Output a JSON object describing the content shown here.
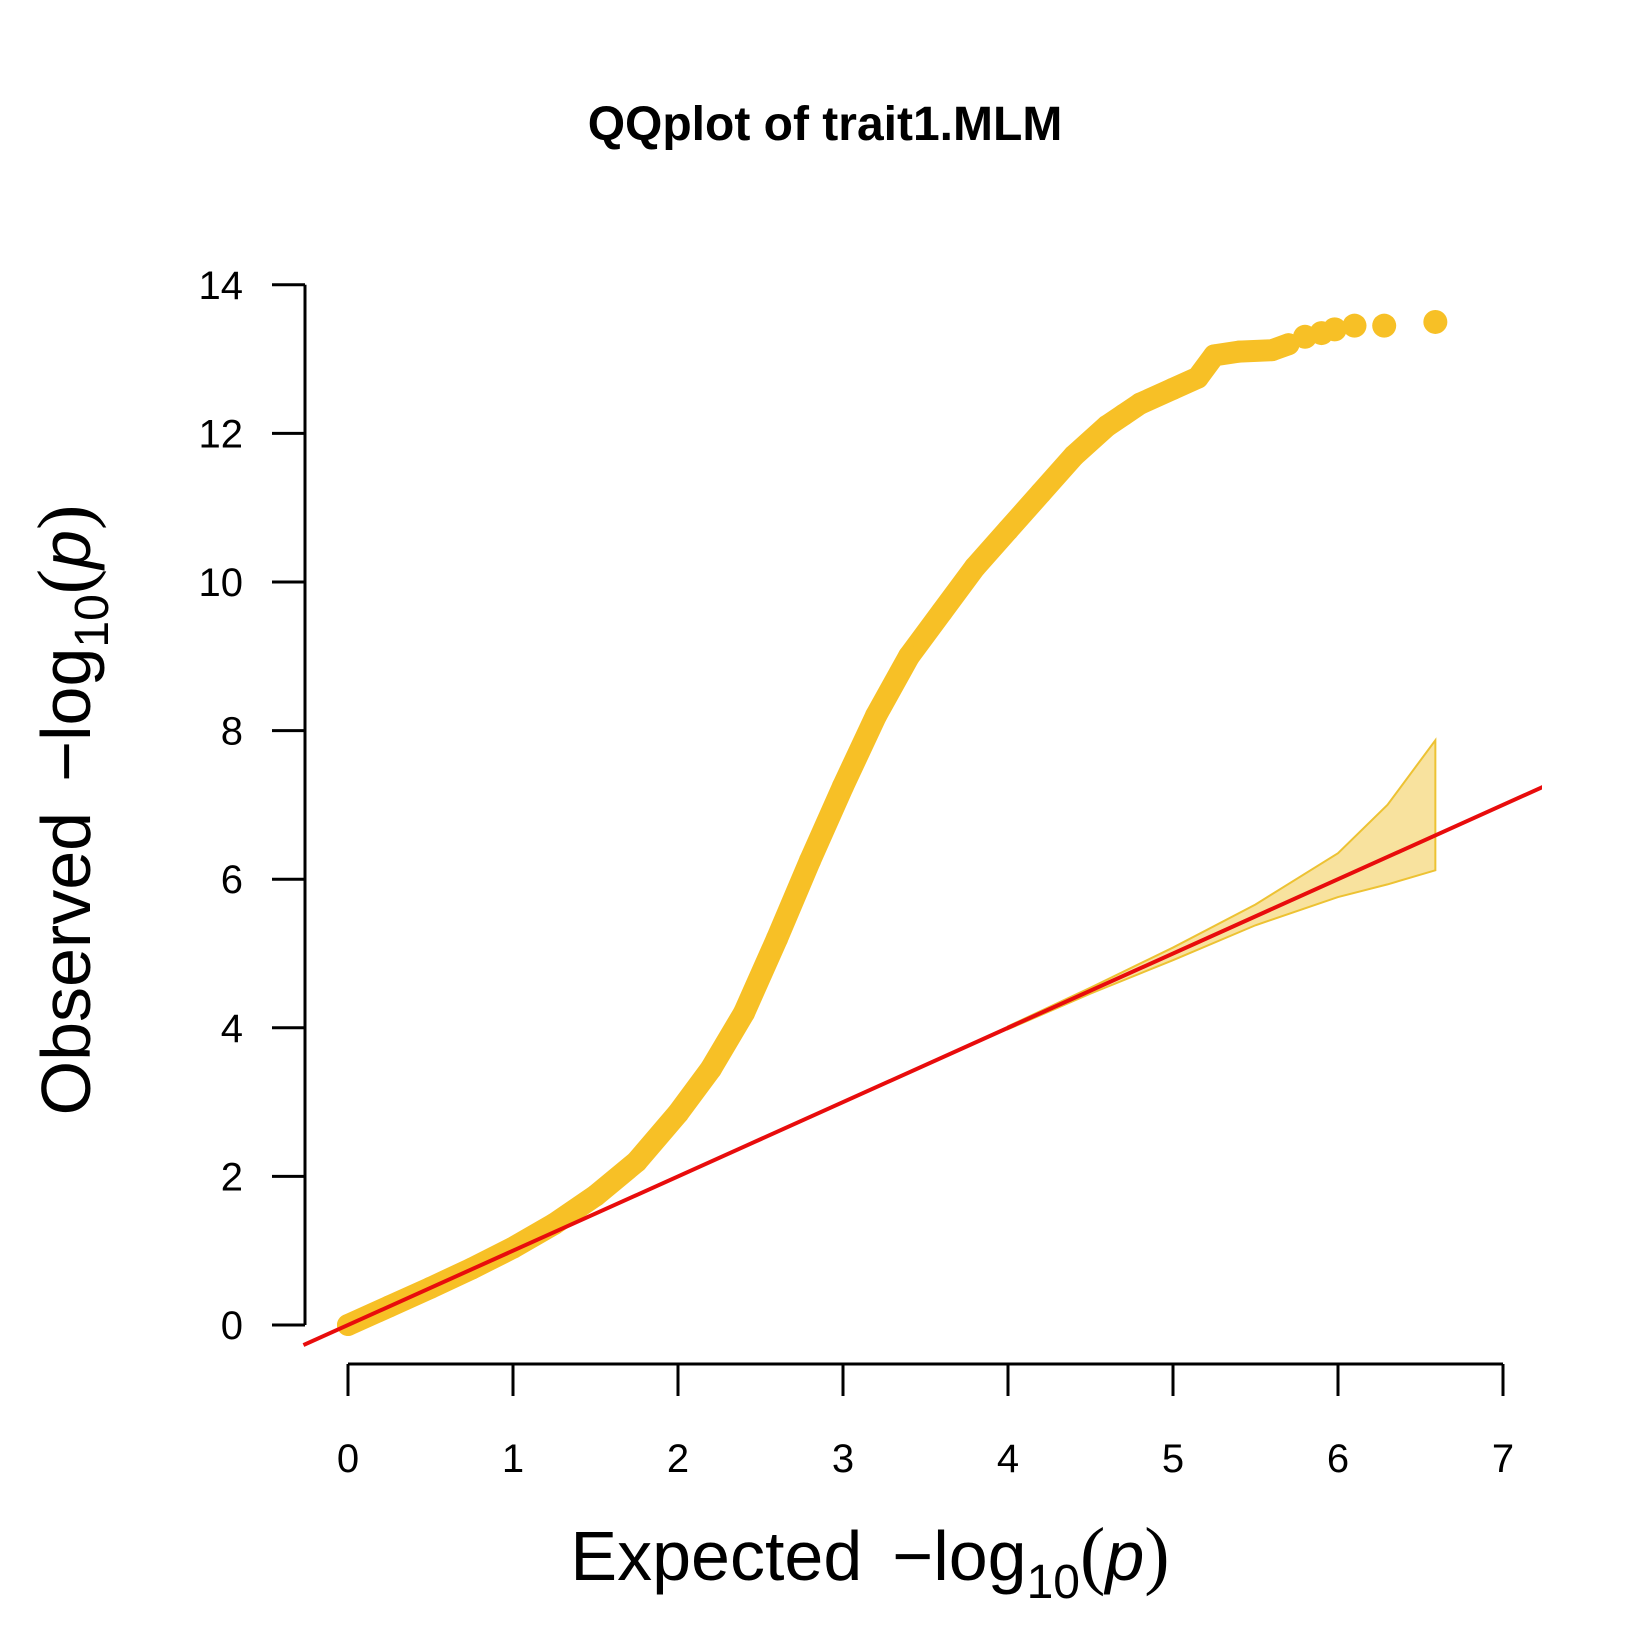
{
  "chart_data": {
    "type": "scatter",
    "title": "QQplot of trait1.MLM",
    "xlabel": {
      "main": "Expected",
      "minus": "−",
      "log": "log",
      "sub": "10",
      "open": "(",
      "var": "p",
      "close": ")"
    },
    "ylabel": {
      "main": "Observed",
      "minus": "−",
      "log": "log",
      "sub": "10",
      "open": "(",
      "var": "p",
      "close": ")"
    },
    "xlim": [
      0,
      7
    ],
    "ylim": [
      0,
      14
    ],
    "x_ticks": [
      "0",
      "1",
      "2",
      "3",
      "4",
      "5",
      "6",
      "7"
    ],
    "y_ticks": [
      "0",
      "2",
      "4",
      "6",
      "8",
      "10",
      "12",
      "14"
    ],
    "colors": {
      "points": "#F7C026",
      "reference_line": "#E80C0C",
      "confidence_fill": "#F8E29E",
      "confidence_stroke": "#EDC233",
      "axis": "#000000"
    },
    "reference_line": {
      "slope": 1,
      "intercept": 0,
      "x_range": [
        -0.27,
        7.27
      ]
    },
    "confidence_band": {
      "x": [
        4.0,
        4.5,
        5.0,
        5.5,
        6.0,
        6.3,
        6.59
      ],
      "upper": [
        4.02,
        4.54,
        5.08,
        5.66,
        6.35,
        7.0,
        7.87
      ],
      "lower": [
        3.98,
        4.46,
        4.91,
        5.38,
        5.76,
        5.93,
        6.12
      ]
    },
    "observed_curve": {
      "x": [
        0.0,
        0.25,
        0.5,
        0.75,
        1.0,
        1.25,
        1.5,
        1.75,
        2.0,
        2.2,
        2.4,
        2.6,
        2.8,
        3.0,
        3.2,
        3.4,
        3.6,
        3.8,
        4.0,
        4.2,
        4.4,
        4.6,
        4.7,
        4.8,
        5.0,
        5.15,
        5.25,
        5.4,
        5.6,
        5.7
      ],
      "y": [
        0.0,
        0.25,
        0.5,
        0.76,
        1.04,
        1.36,
        1.74,
        2.2,
        2.85,
        3.45,
        4.2,
        5.2,
        6.25,
        7.25,
        8.2,
        9.0,
        9.6,
        10.2,
        10.7,
        11.2,
        11.7,
        12.1,
        12.25,
        12.4,
        12.6,
        12.75,
        13.05,
        13.1,
        13.12,
        13.2
      ]
    },
    "outlier_points": [
      {
        "x": 5.8,
        "y": 13.3
      },
      {
        "x": 5.9,
        "y": 13.35
      },
      {
        "x": 5.98,
        "y": 13.4
      },
      {
        "x": 6.1,
        "y": 13.45
      },
      {
        "x": 6.28,
        "y": 13.45
      },
      {
        "x": 6.59,
        "y": 13.5
      }
    ]
  }
}
